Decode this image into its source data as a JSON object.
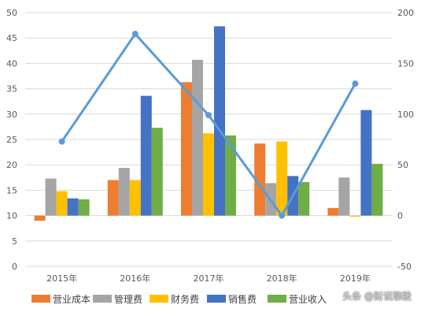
{
  "chart_data": {
    "type": "bar",
    "categories": [
      "2015年",
      "2016年",
      "2017年",
      "2018年",
      "2019年"
    ],
    "series": [
      {
        "name": "营业成本",
        "axis": "left",
        "color": "#ED7D31",
        "values": [
          9,
          17,
          36.3,
          24.2,
          11.5
        ]
      },
      {
        "name": "管理费",
        "axis": "left",
        "color": "#A5A5A5",
        "values": [
          17.3,
          19.4,
          40.7,
          16.4,
          17.5
        ]
      },
      {
        "name": "财务费",
        "axis": "left",
        "color": "#FFC000",
        "values": [
          14.8,
          17,
          26.2,
          24.6,
          9.8
        ]
      },
      {
        "name": "销售费",
        "axis": "left",
        "color": "#4472C4",
        "values": [
          13.4,
          33.6,
          47.3,
          17.8,
          30.8
        ]
      },
      {
        "name": "营业收入",
        "axis": "left",
        "color": "#70AD47",
        "values": [
          13.2,
          27.3,
          25.8,
          16.6,
          20.2
        ]
      },
      {
        "name": "",
        "axis": "right",
        "type": "line",
        "color": "#5B9BD5",
        "values": [
          73,
          179,
          99,
          0,
          130
        ]
      }
    ],
    "y_left": {
      "min": 0,
      "max": 50,
      "ticks": [
        "0",
        "5",
        "10",
        "15",
        "20",
        "25",
        "30",
        "35",
        "40",
        "45",
        "50"
      ]
    },
    "y_right": {
      "min": -50,
      "max": 200,
      "ticks": [
        "-50",
        "0",
        "50",
        "100",
        "150",
        "200"
      ]
    },
    "bar_baseline": 10,
    "grid": true,
    "legend": "bottom"
  },
  "watermark": "头条 @财说聊股"
}
